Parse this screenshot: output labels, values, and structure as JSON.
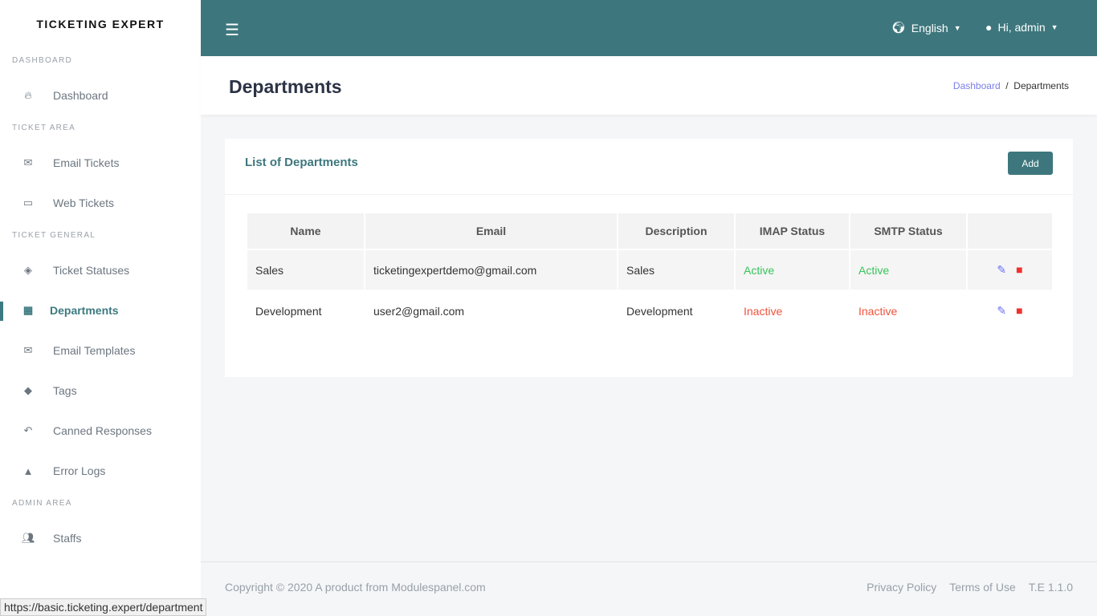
{
  "brand": "TICKETING EXPERT",
  "sidebar": {
    "sections": [
      {
        "title": "DASHBOARD",
        "items": [
          {
            "label": "Dashboard",
            "icon": "fire-icon"
          }
        ]
      },
      {
        "title": "TICKET AREA",
        "items": [
          {
            "label": "Email Tickets",
            "icon": "envelope-icon"
          },
          {
            "label": "Web Tickets",
            "icon": "ticket-icon"
          }
        ]
      },
      {
        "title": "TICKET GENERAL",
        "items": [
          {
            "label": "Ticket Statuses",
            "icon": "fill-icon"
          },
          {
            "label": "Departments",
            "icon": "building-icon",
            "active": true
          },
          {
            "label": "Email Templates",
            "icon": "envelope-open-icon"
          },
          {
            "label": "Tags",
            "icon": "tags-icon"
          },
          {
            "label": "Canned Responses",
            "icon": "reply-icon"
          },
          {
            "label": "Error Logs",
            "icon": "warning-icon"
          }
        ]
      },
      {
        "title": "ADMIN AREA",
        "items": [
          {
            "label": "Staffs",
            "icon": "users-icon"
          }
        ]
      }
    ]
  },
  "topbar": {
    "language": "English",
    "user": "Hi, admin"
  },
  "page": {
    "title": "Departments",
    "breadcrumb": [
      "Dashboard",
      "Departments"
    ]
  },
  "card": {
    "title": "List of Departments",
    "add_label": "Add",
    "columns": [
      "Name",
      "Email",
      "Description",
      "IMAP Status",
      "SMTP Status",
      ""
    ],
    "rows": [
      {
        "name": "Sales",
        "email": "ticketingexpertdemo@gmail.com",
        "description": "Sales",
        "imap": "Active",
        "smtp": "Active"
      },
      {
        "name": "Development",
        "email": "user2@gmail.com",
        "description": "Development",
        "imap": "Inactive",
        "smtp": "Inactive"
      }
    ]
  },
  "footer": {
    "copyright": "Copyright © 2020 A product from Modulespanel.com",
    "links": [
      "Privacy Policy",
      "Terms of Use"
    ],
    "version": "T.E 1.1.0"
  },
  "status_url": "https://basic.ticketing.expert/department",
  "colors": {
    "primary": "#3d777d",
    "active": "#37c45a",
    "inactive": "#f0533c"
  }
}
